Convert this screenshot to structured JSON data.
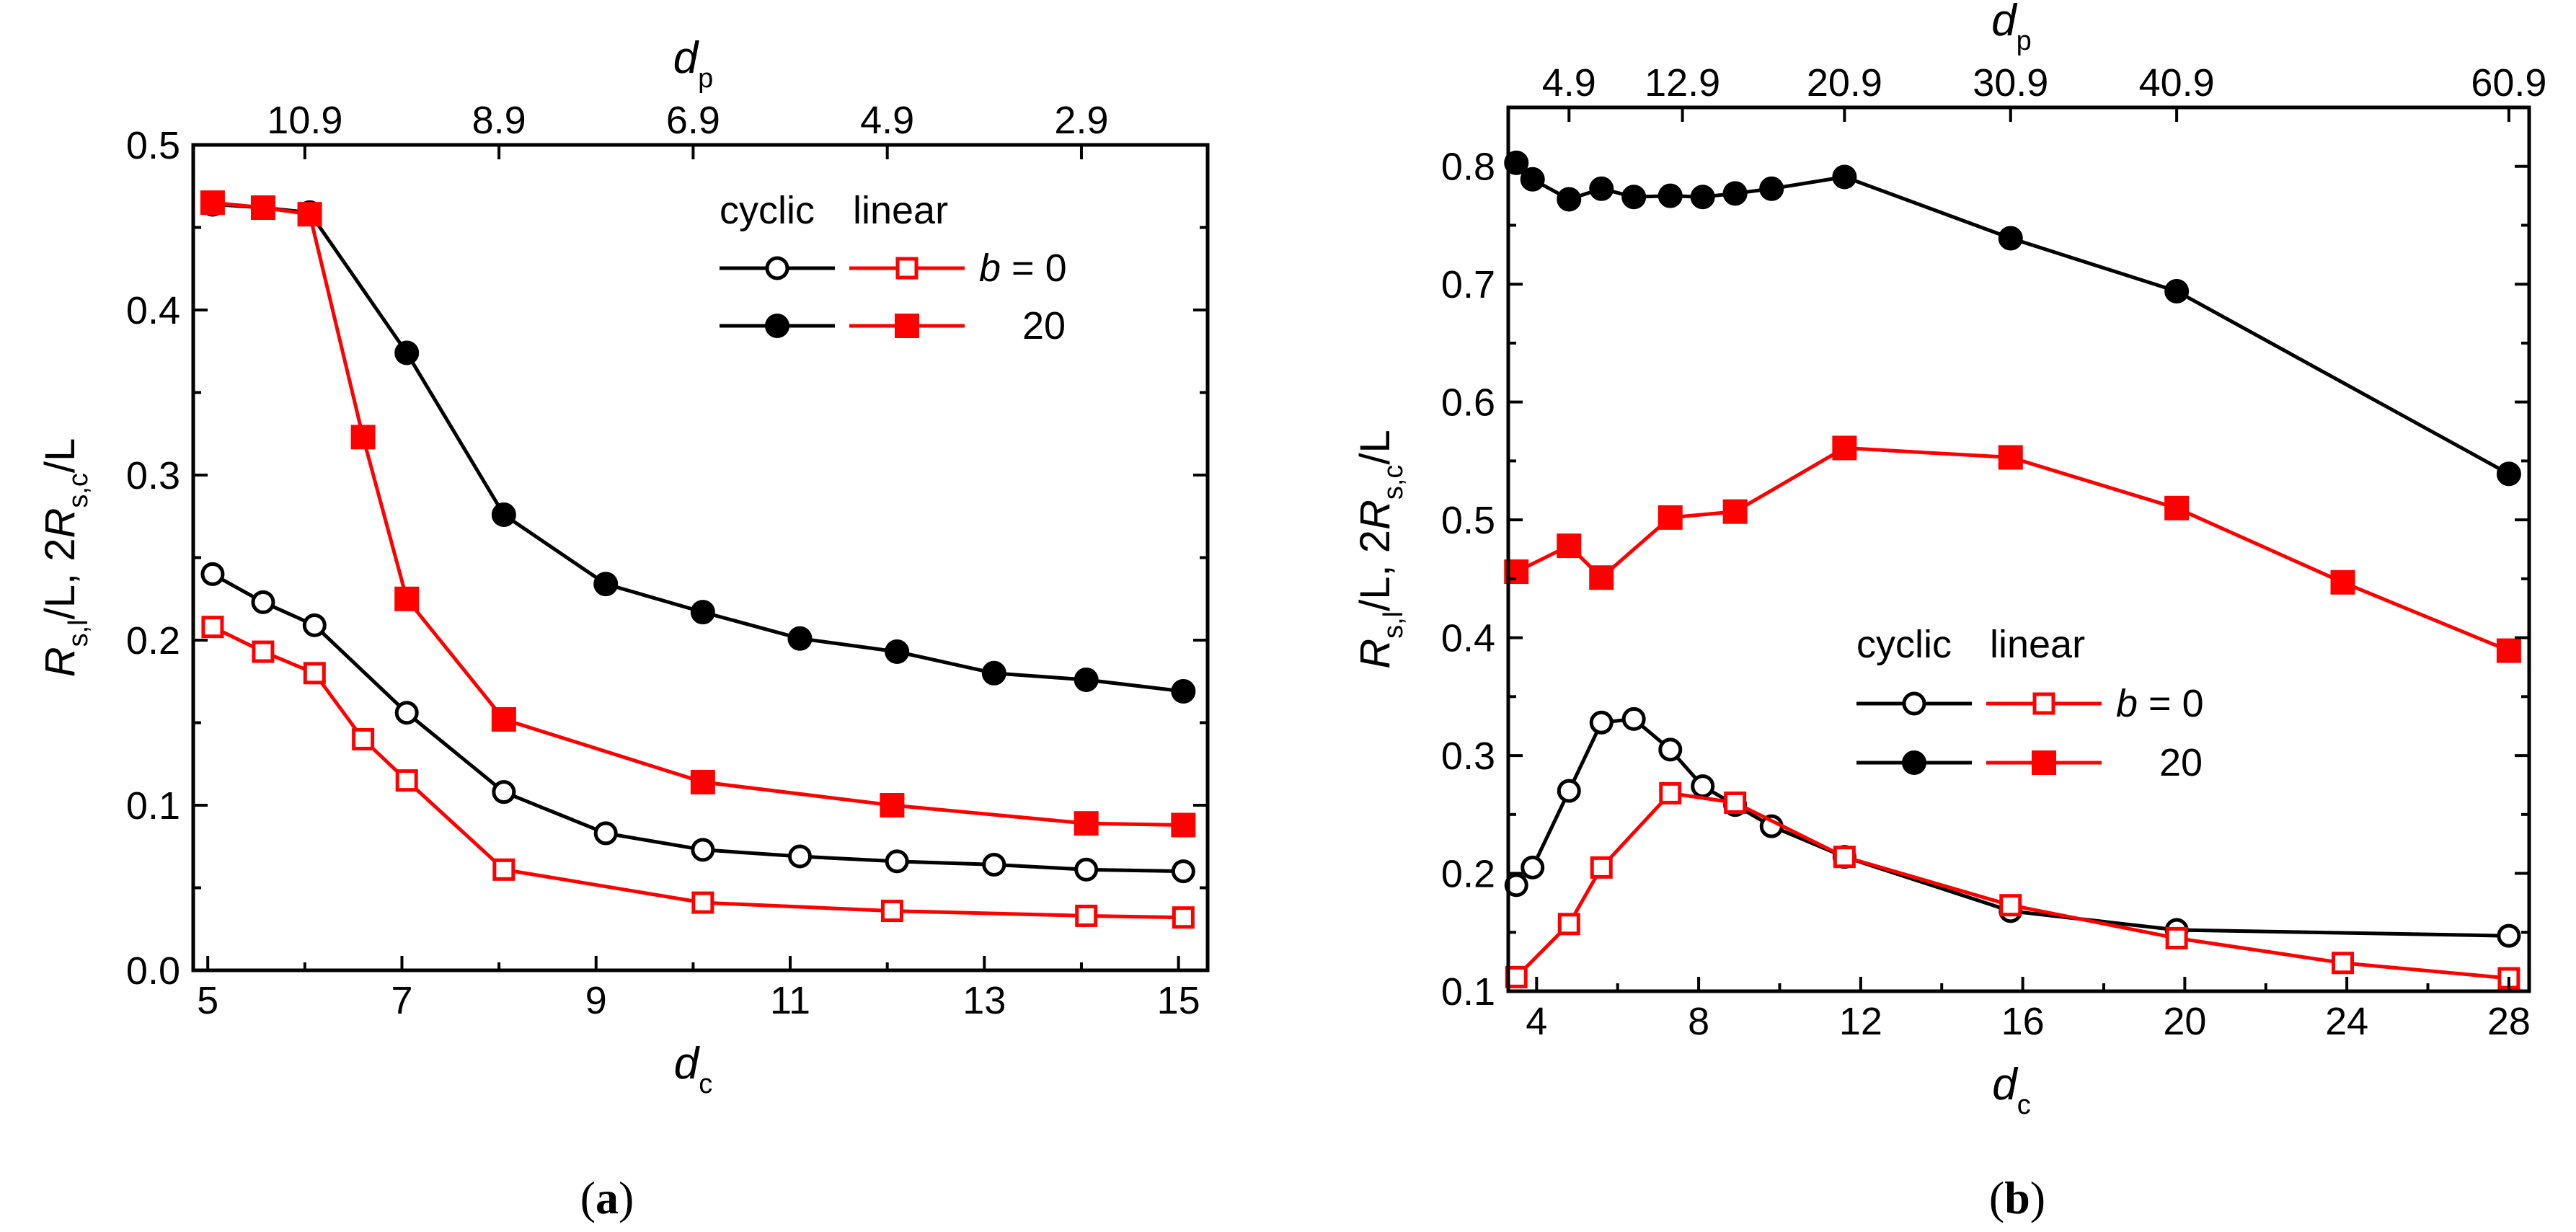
{
  "colors": {
    "cyclic": "#000000",
    "linear": "#ff0000",
    "axis": "#000000",
    "background": "#ffffff"
  },
  "legend_text": {
    "header_cyclic": "cyclic",
    "header_linear": "linear",
    "b_symbol": "b",
    "b0_suffix": " = 0",
    "b20": "20"
  },
  "axis_symbols": {
    "d": "d",
    "sub_c": "c",
    "sub_p": "p",
    "ylabel": {
      "r1": "R",
      "s1": "s,l",
      "mid": "/L, 2",
      "r2": "R",
      "s2": "s,c",
      "end": "/L"
    }
  },
  "chart_data": [
    {
      "id": "a",
      "type": "line",
      "caption": "a",
      "xlabel": "d_c",
      "x2label": "d_p",
      "ylabel": "R_s,l/L, 2R_s,c/L",
      "xlim": [
        4.85,
        15.3
      ],
      "ylim": [
        0.0,
        0.5
      ],
      "xticks": [
        5,
        7,
        9,
        11,
        13,
        15
      ],
      "xtick_labels": [
        "5",
        "7",
        "9",
        "11",
        "13",
        "15"
      ],
      "yticks": [
        0.0,
        0.1,
        0.2,
        0.3,
        0.4,
        0.5
      ],
      "ytick_labels": [
        "0.0",
        "0.1",
        "0.2",
        "0.3",
        "0.4",
        "0.5"
      ],
      "x2ticks": [
        6.0,
        8.0,
        10.0,
        12.0,
        14.0
      ],
      "x2tick_labels": [
        "10.9",
        "8.9",
        "6.9",
        "4.9",
        "2.9"
      ],
      "legend_position": "top-right",
      "series": [
        {
          "name": "cyclic, b = 0",
          "color": "#000000",
          "marker": "circle-open",
          "x": [
            5.05,
            5.57,
            6.1,
            7.05,
            8.05,
            9.1,
            10.1,
            11.1,
            12.1,
            13.1,
            14.05,
            15.05
          ],
          "y": [
            0.24,
            0.223,
            0.209,
            0.156,
            0.108,
            0.083,
            0.073,
            0.069,
            0.066,
            0.064,
            0.061,
            0.06
          ]
        },
        {
          "name": "linear, b = 0",
          "color": "#ff0000",
          "marker": "square-open",
          "x": [
            5.05,
            5.57,
            6.1,
            6.6,
            7.05,
            8.05,
            10.1,
            12.05,
            14.05,
            15.05
          ],
          "y": [
            0.208,
            0.193,
            0.18,
            0.14,
            0.115,
            0.061,
            0.041,
            0.036,
            0.033,
            0.032
          ]
        },
        {
          "name": "cyclic, b = 20",
          "color": "#000000",
          "marker": "circle-filled",
          "x": [
            5.05,
            5.57,
            6.05,
            7.05,
            8.05,
            9.1,
            10.1,
            11.1,
            12.1,
            13.1,
            14.05,
            15.05
          ],
          "y": [
            0.464,
            0.462,
            0.459,
            0.374,
            0.276,
            0.234,
            0.217,
            0.201,
            0.193,
            0.18,
            0.176,
            0.169
          ]
        },
        {
          "name": "linear, b = 20",
          "color": "#ff0000",
          "marker": "square-filled",
          "x": [
            5.05,
            5.57,
            6.05,
            6.6,
            7.05,
            8.05,
            10.1,
            12.05,
            14.05,
            15.05
          ],
          "y": [
            0.465,
            0.462,
            0.458,
            0.323,
            0.225,
            0.152,
            0.114,
            0.1,
            0.089,
            0.088
          ]
        }
      ]
    },
    {
      "id": "b",
      "type": "line",
      "caption": "b",
      "xlabel": "d_c",
      "x2label": "d_p",
      "ylabel": "R_s,l/L, 2R_s,c/L",
      "xlim": [
        3.3,
        28.5
      ],
      "ylim": [
        0.1,
        0.85
      ],
      "xticks": [
        4,
        8,
        12,
        16,
        20,
        24,
        28
      ],
      "xtick_labels": [
        "4",
        "8",
        "12",
        "16",
        "20",
        "24",
        "28"
      ],
      "yticks": [
        0.1,
        0.2,
        0.3,
        0.4,
        0.5,
        0.6,
        0.7,
        0.8
      ],
      "ytick_labels": [
        "0.1",
        "0.2",
        "0.3",
        "0.4",
        "0.5",
        "0.6",
        "0.7",
        "0.8"
      ],
      "x2ticks": [
        4.8,
        7.6,
        11.6,
        15.7,
        19.8,
        28.0
      ],
      "x2tick_labels": [
        "4.9",
        "12.9",
        "20.9",
        "30.9",
        "40.9",
        "60.9"
      ],
      "legend_position": "center-right",
      "series": [
        {
          "name": "cyclic, b = 0",
          "color": "#000000",
          "marker": "circle-open",
          "x": [
            3.5,
            3.9,
            4.8,
            5.6,
            6.4,
            7.3,
            8.1,
            8.9,
            9.8,
            11.6,
            15.7,
            19.8,
            28.0
          ],
          "y": [
            0.19,
            0.205,
            0.27,
            0.328,
            0.331,
            0.305,
            0.274,
            0.258,
            0.24,
            0.214,
            0.168,
            0.152,
            0.147
          ]
        },
        {
          "name": "linear, b = 0",
          "color": "#ff0000",
          "marker": "square-open",
          "x": [
            3.5,
            4.8,
            5.6,
            7.3,
            8.9,
            11.6,
            15.7,
            19.8,
            23.9,
            28.0
          ],
          "y": [
            0.112,
            0.157,
            0.205,
            0.268,
            0.26,
            0.214,
            0.173,
            0.145,
            0.124,
            0.111
          ]
        },
        {
          "name": "cyclic, b = 20",
          "color": "#000000",
          "marker": "circle-filled",
          "x": [
            3.5,
            3.9,
            4.8,
            5.6,
            6.4,
            7.3,
            8.1,
            8.9,
            9.8,
            11.6,
            15.7,
            19.8,
            28.0
          ],
          "y": [
            0.803,
            0.789,
            0.772,
            0.781,
            0.774,
            0.775,
            0.774,
            0.777,
            0.781,
            0.791,
            0.739,
            0.694,
            0.539
          ]
        },
        {
          "name": "linear, b = 20",
          "color": "#ff0000",
          "marker": "square-filled",
          "x": [
            3.5,
            4.8,
            5.6,
            7.3,
            8.9,
            11.6,
            15.7,
            19.8,
            23.9,
            28.0
          ],
          "y": [
            0.456,
            0.478,
            0.451,
            0.502,
            0.507,
            0.561,
            0.553,
            0.51,
            0.447,
            0.389
          ]
        }
      ]
    }
  ]
}
